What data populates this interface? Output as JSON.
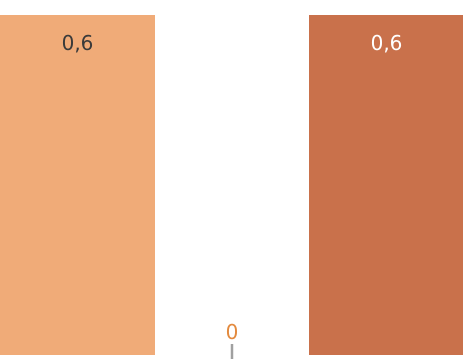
{
  "chart_data": {
    "type": "bar",
    "categories": [
      "",
      "",
      ""
    ],
    "values": [
      0.6,
      0,
      0.6
    ],
    "labels": [
      "0,6",
      "0",
      "0,6"
    ],
    "ylim": [
      0,
      0.6
    ],
    "grid": false,
    "title": "",
    "xlabel": "",
    "ylabel": "",
    "colors": {
      "bars": [
        "#F0AB78",
        "#F0AB78",
        "#C9714B"
      ],
      "label_on_bar": [
        "#3A3A3A",
        "#E38A3E",
        "#FFFFFF"
      ],
      "zero_tick": "#A0A0A0"
    }
  }
}
